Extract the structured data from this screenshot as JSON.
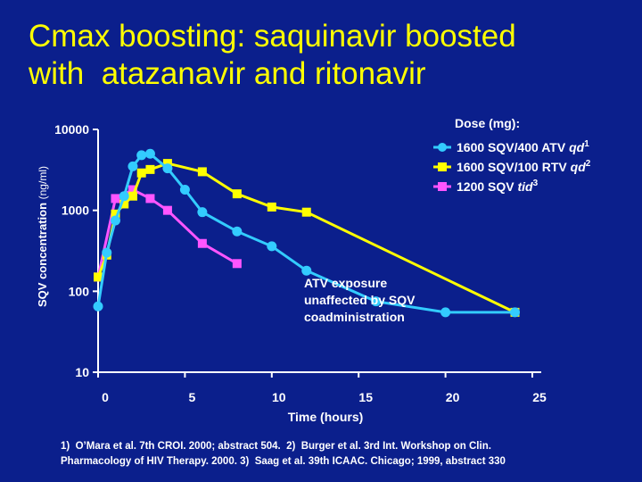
{
  "title_line1": "Cmax boosting: saquinavir boosted",
  "title_line2": "with  atazanavir and ritonavir",
  "chart_data": {
    "type": "line",
    "title": "Cmax boosting: saquinavir boosted with atazanavir and ritonavir",
    "xlabel": "Time (hours)",
    "ylabel": "SQV concentration",
    "ylabel_units": "(ng/ml)",
    "yscale": "log",
    "xlim": [
      0,
      25
    ],
    "ylim": [
      10,
      10000
    ],
    "x_ticks": [
      0,
      5,
      10,
      15,
      20,
      25
    ],
    "y_ticks": [
      10,
      100,
      1000,
      10000
    ],
    "legend_title": "Dose (mg):",
    "legend_position": "top-right",
    "series": [
      {
        "name": "1600 SQV/400 ATV qd",
        "name_italic": "qd",
        "name_plain": "1600 SQV/400 ATV ",
        "superscript": "1",
        "color": "#33ccff",
        "marker": "circle",
        "x": [
          0,
          0.5,
          1,
          1.5,
          2,
          2.5,
          3,
          4,
          5,
          6,
          8,
          10,
          12,
          16,
          20,
          24
        ],
        "y": [
          65,
          300,
          750,
          1500,
          3500,
          4800,
          5000,
          3300,
          1800,
          950,
          550,
          360,
          180,
          75,
          55,
          55
        ]
      },
      {
        "name": "1600 SQV/100 RTV qd",
        "name_plain": "1600 SQV/100 RTV ",
        "name_italic": "qd",
        "superscript": "2",
        "color": "#ffff00",
        "marker": "square",
        "x": [
          0,
          0.5,
          1,
          1.5,
          2,
          2.5,
          3,
          4,
          6,
          8,
          10,
          12,
          24
        ],
        "y": [
          150,
          280,
          900,
          1200,
          1500,
          2900,
          3200,
          3800,
          3000,
          1600,
          1100,
          950,
          55
        ]
      },
      {
        "name": "1200 SQV tid",
        "name_plain": "1200 SQV ",
        "name_italic": "tid",
        "superscript": "3",
        "color": "#ff55ff",
        "marker": "square",
        "x": [
          0,
          1,
          2,
          3,
          4,
          6,
          8
        ],
        "y": [
          150,
          1400,
          1800,
          1400,
          1000,
          390,
          220
        ]
      }
    ],
    "annotation_lines": [
      "ATV exposure",
      "unaffected by SQV",
      "coadministration"
    ]
  },
  "references": {
    "line1": "1)  O’Mara et al. 7th CROI. 2000; abstract 504.  2)  Burger et al. 3rd Int. Workshop on Clin.",
    "line2": "Pharmacology of HIV Therapy. 2000. 3)  Saag et al. 39th ICAAC. Chicago; 1999, abstract 330"
  }
}
